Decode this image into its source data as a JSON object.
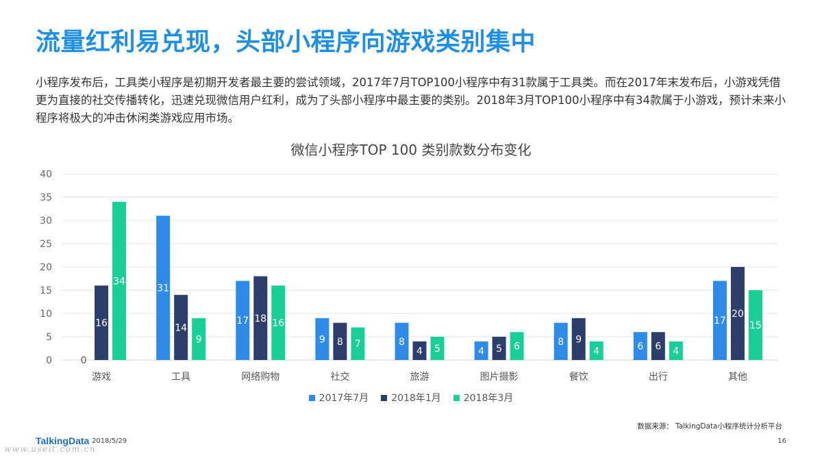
{
  "slide": {
    "title": "流量红利易兑现，头部小程序向游戏类别集中",
    "description": "小程序发布后，工具类小程序是初期开发者最主要的尝试领域，2017年7月TOP100小程序中有31款属于工具类。而在2017年末发布后，小游戏凭借更为直接的社交传播转化，迅速兑现微信用户红利，成为了头部小程序中最主要的类别。2018年3月TOP100小程序中有34款属于小游戏，预计未来小程序将极大的冲击休闲类游戏应用市场。",
    "source": "数据来源： TalkingData小程序统计分析平台",
    "logo": "TalkingData",
    "date": "2018/5/29",
    "page_number": "16",
    "watermark": "www.useit.com.cn"
  },
  "chart_data": {
    "type": "bar",
    "title": "微信小程序TOP 100 类别款数分布变化",
    "categories": [
      "游戏",
      "工具",
      "网络购物",
      "社交",
      "旅游",
      "图片摄影",
      "餐饮",
      "出行",
      "其他"
    ],
    "series": [
      {
        "name": "2017年7月",
        "color": "#2e8be8",
        "values": [
          0,
          31,
          17,
          9,
          8,
          4,
          8,
          6,
          17
        ]
      },
      {
        "name": "2018年1月",
        "color": "#2c3e69",
        "values": [
          16,
          14,
          18,
          8,
          4,
          5,
          9,
          6,
          20
        ]
      },
      {
        "name": "2018年3月",
        "color": "#19cf97",
        "values": [
          34,
          9,
          16,
          7,
          5,
          6,
          4,
          4,
          15
        ]
      }
    ],
    "yticks": [
      "0",
      "5",
      "10",
      "15",
      "20",
      "25",
      "30",
      "35",
      "40"
    ],
    "ylim": [
      0,
      40
    ],
    "grid": true,
    "legend_position": "bottom"
  }
}
